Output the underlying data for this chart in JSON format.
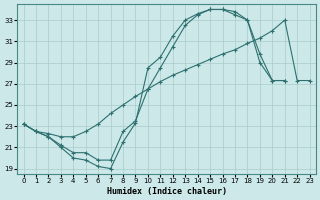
{
  "xlabel": "Humidex (Indice chaleur)",
  "bg_color": "#cce8e8",
  "grid_color": "#aacccc",
  "line_color": "#2e7070",
  "xlim": [
    -0.5,
    23.5
  ],
  "ylim": [
    18.5,
    34.5
  ],
  "xticks": [
    0,
    1,
    2,
    3,
    4,
    5,
    6,
    7,
    8,
    9,
    10,
    11,
    12,
    13,
    14,
    15,
    16,
    17,
    18,
    19,
    20,
    21,
    22,
    23
  ],
  "yticks": [
    19,
    21,
    23,
    25,
    27,
    29,
    31,
    33
  ],
  "s1_x": [
    0,
    1,
    2,
    3,
    4,
    5,
    6,
    7,
    8,
    9,
    10,
    11,
    12,
    13,
    14,
    15,
    16,
    17,
    18,
    19,
    20,
    21
  ],
  "s1_y": [
    23.2,
    22.5,
    22.0,
    21.0,
    20.0,
    19.8,
    19.2,
    19.0,
    21.5,
    23.3,
    28.5,
    29.5,
    31.5,
    33.0,
    33.6,
    34.0,
    34.0,
    33.8,
    33.0,
    29.0,
    27.3,
    27.3
  ],
  "s2_x": [
    0,
    1,
    2,
    3,
    4,
    5,
    6,
    7,
    8,
    9,
    10,
    11,
    12,
    13,
    14,
    15,
    16,
    17,
    18,
    19,
    20,
    21
  ],
  "s2_y": [
    23.2,
    22.5,
    22.0,
    21.2,
    20.5,
    20.5,
    19.8,
    19.8,
    22.5,
    23.5,
    26.5,
    28.5,
    30.5,
    32.5,
    33.5,
    34.0,
    34.0,
    33.5,
    33.0,
    29.8,
    27.3,
    27.3
  ],
  "s3_x": [
    0,
    1,
    2,
    3,
    4,
    5,
    6,
    7,
    8,
    9,
    10,
    11,
    12,
    13,
    14,
    15,
    16,
    17,
    18,
    19,
    20,
    21,
    22,
    23
  ],
  "s3_y": [
    23.2,
    22.5,
    22.3,
    22.0,
    22.0,
    22.5,
    23.2,
    24.2,
    25.0,
    25.8,
    26.5,
    27.2,
    27.8,
    28.3,
    28.8,
    29.3,
    29.8,
    30.2,
    30.8,
    31.3,
    32.0,
    33.0,
    27.3,
    27.3
  ]
}
